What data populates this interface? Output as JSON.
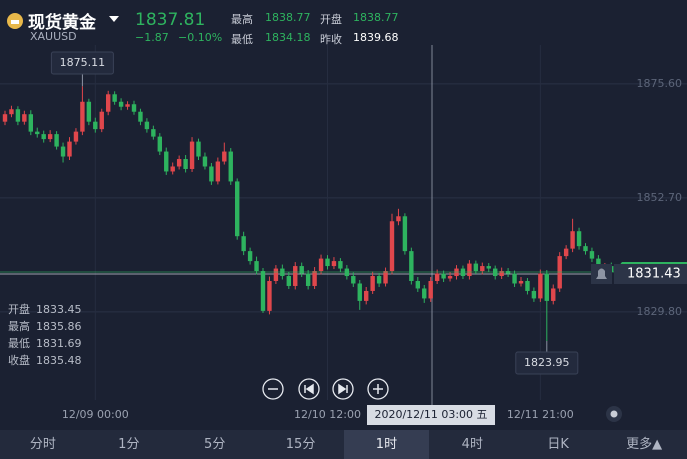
{
  "header": {
    "name": "现货黄金",
    "symbol": "XAUUSD",
    "change": "−1.87",
    "change_pct": "−0.10%",
    "stats": [
      {
        "label": "最高",
        "value": "1838.77"
      },
      {
        "label": "开盘",
        "value": "1838.77"
      },
      {
        "label": "最低",
        "value": "1834.18"
      },
      {
        "label": "昨收",
        "value": "1839.68"
      }
    ]
  },
  "chart_data": {
    "type": "candlestick",
    "categories": [
      null,
      null,
      null,
      null,
      null,
      null,
      null,
      null,
      null,
      null,
      null,
      null,
      null,
      null,
      "12/09 00:00",
      null,
      null,
      null,
      null,
      null,
      null,
      null,
      null,
      null,
      null,
      null,
      null,
      null,
      null,
      null,
      null,
      null,
      null,
      null,
      null,
      null,
      null,
      null,
      null,
      null,
      null,
      null,
      null,
      null,
      null,
      null,
      null,
      null,
      null,
      null,
      "12/10 12:00",
      null,
      null,
      null,
      null,
      null,
      null,
      null,
      null,
      null,
      null,
      null,
      null,
      null,
      null,
      null,
      null,
      null,
      null,
      null,
      null,
      null,
      null,
      null,
      null,
      null,
      null,
      null,
      null,
      null,
      null,
      null,
      null,
      "12/11 21:00",
      null,
      null,
      null,
      null,
      null,
      null,
      null,
      null,
      null,
      null,
      null
    ],
    "open": [
      1868,
      1869.5,
      1870.5,
      1868,
      1869.5,
      1866,
      1865.5,
      1864.5,
      1865.5,
      1863,
      1861,
      1864,
      1866,
      1872,
      1868,
      1866.5,
      1870,
      1873.5,
      1872,
      1871,
      1871.5,
      1870,
      1868,
      1866.5,
      1865,
      1862,
      1858,
      1859,
      1860.5,
      1858.5,
      1864,
      1861,
      1859,
      1856,
      1860,
      1862,
      1856,
      1845,
      1842,
      1840,
      1838,
      1830,
      1836,
      1838.5,
      1837,
      1835,
      1839,
      1837.5,
      1835,
      1838,
      1840.5,
      1839,
      1840,
      1838.5,
      1837,
      1835.5,
      1832,
      1834,
      1837,
      1835.5,
      1838,
      1848,
      1849,
      1842,
      1836,
      1834.5,
      1832.5,
      1836,
      1837.5,
      1836.5,
      1837,
      1838.5,
      1837,
      1839.5,
      1838,
      1839,
      1838.5,
      1837,
      1838,
      1837.5,
      1835.5,
      1836,
      1834,
      1832.5,
      1837.5,
      1832,
      1834.5,
      1841,
      1842.5,
      1846,
      1843,
      1842,
      1840.5,
      1838.5,
      1839
    ],
    "high": [
      1870.2,
      1871.2,
      1871.1,
      1870.2,
      1870.3,
      1866.8,
      1866.2,
      1866.3,
      1866.1,
      1863.8,
      1864.9,
      1866.7,
      1875.11,
      1872.6,
      1868.8,
      1870.6,
      1874.2,
      1874.1,
      1872.7,
      1872.1,
      1872.2,
      1870.6,
      1868.7,
      1867.2,
      1865.7,
      1862.8,
      1859.8,
      1861.2,
      1861.3,
      1864.9,
      1864.6,
      1861.8,
      1859.7,
      1860.8,
      1863.8,
      1862.7,
      1856.6,
      1845.9,
      1842.7,
      1840.9,
      1838.6,
      1836.9,
      1839.2,
      1839.3,
      1837.8,
      1839.8,
      1839.7,
      1838.2,
      1838.8,
      1841.3,
      1841.2,
      1840.8,
      1840.6,
      1839.2,
      1837.7,
      1836.2,
      1834.8,
      1837.9,
      1837.6,
      1838.7,
      1849.5,
      1850.5,
      1849.6,
      1842.7,
      1836.8,
      1835.2,
      1836.8,
      1838.3,
      1838.1,
      1837.8,
      1839.2,
      1839.1,
      1840.2,
      1840.1,
      1839.7,
      1839.6,
      1839.1,
      1838.7,
      1838.6,
      1838.1,
      1836.8,
      1836.6,
      1834.7,
      1838.3,
      1838.2,
      1835.3,
      1841.8,
      1843.2,
      1848.5,
      1846.7,
      1843.6,
      1842.7,
      1841.2,
      1839.6,
      1839.7
    ],
    "low": [
      1867.3,
      1868.9,
      1867.3,
      1867.4,
      1865.3,
      1864.8,
      1863.8,
      1863.9,
      1862.4,
      1859.8,
      1860.3,
      1863.4,
      1865.3,
      1867.3,
      1865.8,
      1865.9,
      1869.3,
      1871.4,
      1870.3,
      1870.4,
      1869.4,
      1867.3,
      1865.8,
      1864.4,
      1861.3,
      1857.3,
      1857.4,
      1858.4,
      1857.8,
      1857.9,
      1860.3,
      1858.4,
      1855.3,
      1855.4,
      1859.4,
      1855.3,
      1844.3,
      1841.2,
      1839.3,
      1837.3,
      1829.6,
      1829.3,
      1835.4,
      1836.3,
      1834.4,
      1834.3,
      1836.8,
      1834.3,
      1834.4,
      1837.3,
      1838.3,
      1838.4,
      1837.8,
      1836.3,
      1834.8,
      1830.2,
      1831.3,
      1833.4,
      1834.8,
      1834.9,
      1837.3,
      1847.2,
      1841.3,
      1835.3,
      1833.8,
      1831.6,
      1831.8,
      1835.4,
      1835.8,
      1835.9,
      1836.3,
      1836.4,
      1836.3,
      1837.4,
      1837.3,
      1837.8,
      1836.3,
      1836.4,
      1836.8,
      1834.8,
      1834.9,
      1833.3,
      1831.8,
      1831.8,
      1823.95,
      1831.3,
      1833.8,
      1840.4,
      1841.8,
      1842.3,
      1841.3,
      1839.8,
      1837.8,
      1837.9,
      1837.1
    ],
    "close": [
      1869.5,
      1870.5,
      1868,
      1869.5,
      1866,
      1865.5,
      1864.5,
      1865.5,
      1863,
      1861,
      1864,
      1866,
      1872,
      1868,
      1866.5,
      1870,
      1873.5,
      1872,
      1871,
      1871.5,
      1870,
      1868,
      1866.5,
      1865,
      1862,
      1858,
      1859,
      1860.5,
      1858.5,
      1864,
      1861,
      1859,
      1856,
      1860,
      1862,
      1856,
      1845,
      1842,
      1840,
      1838,
      1830,
      1836,
      1838.5,
      1837,
      1835,
      1839,
      1837.5,
      1835,
      1838,
      1840.5,
      1839,
      1840,
      1838.5,
      1837,
      1835.5,
      1832,
      1834,
      1837,
      1835.5,
      1838,
      1848,
      1849,
      1842,
      1836,
      1834.5,
      1832.5,
      1836,
      1837.5,
      1836.5,
      1837,
      1838.5,
      1837,
      1839.5,
      1838,
      1839,
      1838.5,
      1837,
      1838,
      1837.5,
      1835.5,
      1836,
      1834,
      1832.5,
      1837.5,
      1832,
      1834.5,
      1841,
      1842.5,
      1846,
      1843,
      1842,
      1840.5,
      1838.5,
      1839,
      1837.81
    ],
    "up_color": "#e0474c",
    "down_color": "#2eb35f",
    "ylim": [
      1812.1,
      1883.4
    ],
    "yticks": [
      {
        "value": 1875.6,
        "label": "1875.60"
      },
      {
        "value": 1852.7,
        "label": "1852.70"
      },
      {
        "value": 1829.8,
        "label": "1829.80"
      }
    ],
    "grid": true,
    "last_price": 1837.81,
    "crosshair": {
      "time": "2020/12/11 03:00 五",
      "price": "1831.43",
      "quote": [
        {
          "label": "开盘",
          "value": "1833.45"
        },
        {
          "label": "最高",
          "value": "1835.86"
        },
        {
          "label": "最低",
          "value": "1831.69"
        },
        {
          "label": "收盘",
          "value": "1835.48"
        }
      ]
    }
  },
  "tabs": [
    "分时",
    "1分",
    "5分",
    "15分",
    "1时",
    "4时",
    "日K",
    "更多▲"
  ],
  "selected_tab": 4
}
